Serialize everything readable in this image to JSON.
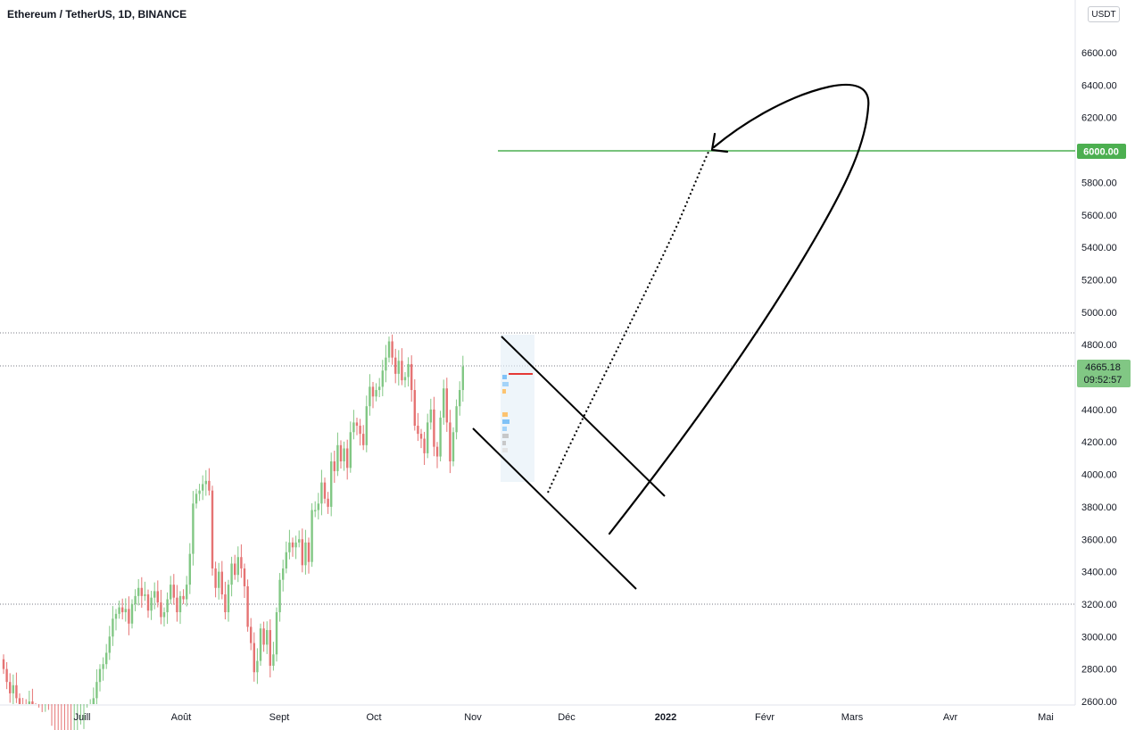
{
  "header": {
    "title": "Ethereum / TetherUS, 1D, BINANCE",
    "currency_button": "USDT"
  },
  "price_badges": {
    "target": {
      "value": "6000.00",
      "color": "#4caf50"
    },
    "current": {
      "value": "4665.18",
      "countdown": "09:52:57",
      "color": "#81c784"
    }
  },
  "chart_data": {
    "type": "candlestick",
    "symbol": "ETHUSDT",
    "interval": "1D",
    "exchange": "BINANCE",
    "y_range": [
      2600,
      6800
    ],
    "y_ticks": [
      2600,
      2800,
      3000,
      3200,
      3400,
      3600,
      3800,
      4000,
      4200,
      4400,
      4600,
      4800,
      5000,
      5200,
      5400,
      5600,
      5800,
      6000,
      6200,
      6400,
      6600
    ],
    "x_ticks": [
      "Juill",
      "Août",
      "Sept",
      "Oct",
      "Nov",
      "Déc",
      "2022",
      "Févr",
      "Mars",
      "Avr",
      "Mai"
    ],
    "close_series": [
      2800,
      2720,
      2650,
      2700,
      2620,
      2580,
      2560,
      2540,
      2600,
      2560,
      2520,
      2480,
      2440,
      2470,
      2420,
      2380,
      2360,
      2300,
      2280,
      2260,
      2240,
      2230,
      2300,
      2350,
      2380,
      2400,
      2520,
      2560,
      2620,
      2720,
      2800,
      2830,
      2900,
      3000,
      3110,
      3140,
      3180,
      3150,
      3170,
      3080,
      3200,
      3250,
      3300,
      3250,
      3260,
      3160,
      3240,
      3280,
      3210,
      3120,
      3150,
      3230,
      3320,
      3240,
      3150,
      3250,
      3230,
      3320,
      3510,
      3820,
      3880,
      3900,
      3940,
      3960,
      3900,
      3420,
      3300,
      3400,
      3260,
      3150,
      3320,
      3450,
      3380,
      3490,
      3420,
      3310,
      3060,
      2960,
      2780,
      2850,
      3050,
      2950,
      3040,
      2820,
      2890,
      3150,
      3350,
      3420,
      3520,
      3580,
      3550,
      3580,
      3600,
      3440,
      3580,
      3460,
      3780,
      3780,
      3820,
      3950,
      3850,
      3800,
      4080,
      4020,
      4180,
      4080,
      4160,
      4040,
      4260,
      4320,
      4300,
      4250,
      4180,
      4420,
      4540,
      4480,
      4520,
      4540,
      4640,
      4720,
      4820,
      4720,
      4620,
      4700,
      4580,
      4600,
      4680,
      4520,
      4300,
      4250,
      4220,
      4130,
      4320,
      4400,
      4170,
      4110,
      4350,
      4530,
      4320,
      4080,
      4260,
      4420,
      4520,
      4665.18
    ],
    "reference_lines": [
      {
        "label": "all-time high",
        "value": 4870,
        "style": "dotted"
      },
      {
        "label": "current price",
        "value": 4665.18,
        "style": "dotted"
      },
      {
        "label": "support",
        "value": 3200,
        "style": "dotted"
      },
      {
        "label": "target",
        "value": 6000,
        "style": "solid",
        "color": "#4caf50"
      }
    ],
    "annotations": [
      "descending channel",
      "projected breakout path to 6000",
      "hand-drawn arrow"
    ],
    "grid": false,
    "legend": "none"
  }
}
